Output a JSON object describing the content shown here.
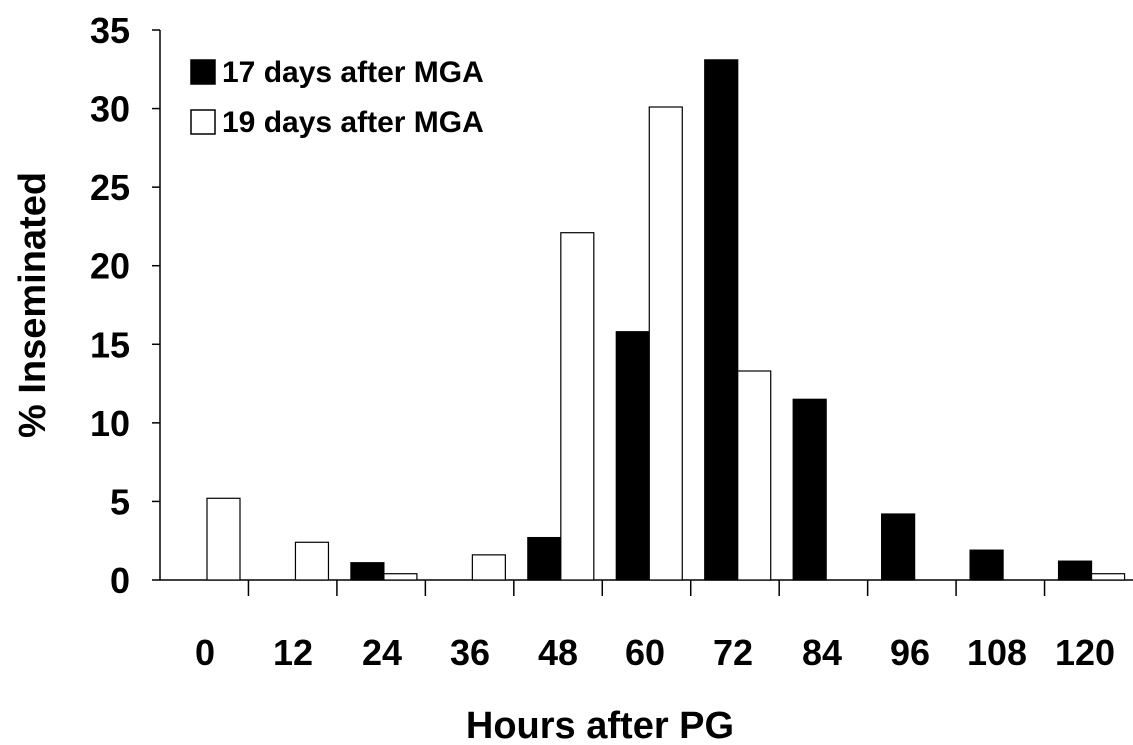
{
  "chart_data": {
    "type": "bar",
    "title": "",
    "xlabel": "Hours after PG",
    "ylabel": "% Inseminated",
    "categories": [
      "0",
      "12",
      "24",
      "36",
      "48",
      "60",
      "72",
      "84",
      "96",
      "108",
      "120"
    ],
    "series": [
      {
        "name": "17 days after MGA",
        "color": "#000000",
        "values": [
          0,
          0,
          1.1,
          0,
          2.7,
          15.8,
          33.1,
          11.5,
          4.2,
          1.9,
          1.2
        ]
      },
      {
        "name": "19 days after MGA",
        "color": "#ffffff",
        "values": [
          5.2,
          2.4,
          0.4,
          1.6,
          22.1,
          30.1,
          13.3,
          0,
          0,
          0,
          0.4
        ]
      }
    ],
    "ylim": [
      0,
      35
    ],
    "yticks": [
      0,
      5,
      10,
      15,
      20,
      25,
      30,
      35
    ],
    "grid": false,
    "legend_position": "top-left"
  }
}
